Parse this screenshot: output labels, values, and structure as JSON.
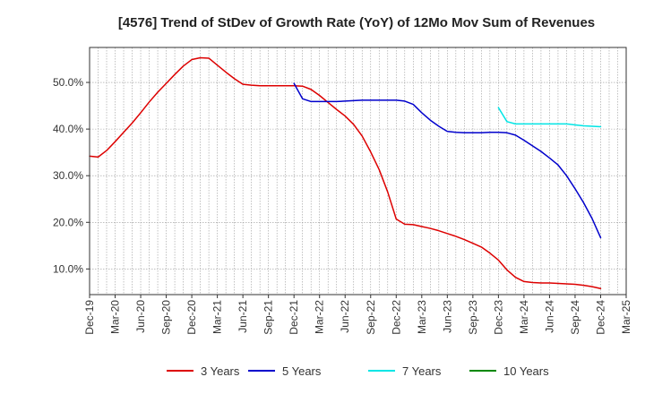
{
  "chart_data": {
    "type": "line",
    "title": "[4576]  Trend of StDev of Growth Rate (YoY) of 12Mo Mov Sum of Revenues",
    "xlabel": "",
    "ylabel": "",
    "x_ticks": [
      "Dec-19",
      "Mar-20",
      "Jun-20",
      "Sep-20",
      "Dec-20",
      "Mar-21",
      "Jun-21",
      "Sep-21",
      "Dec-21",
      "Mar-22",
      "Jun-22",
      "Sep-22",
      "Dec-22",
      "Mar-23",
      "Jun-23",
      "Sep-23",
      "Dec-23",
      "Mar-24",
      "Jun-24",
      "Sep-24",
      "Dec-24",
      "Mar-25"
    ],
    "y_ticks": [
      10,
      20,
      30,
      40,
      50
    ],
    "y_tick_labels": [
      "10.0%",
      "20.0%",
      "30.0%",
      "40.0%",
      "50.0%"
    ],
    "ylim": [
      4.5,
      57.5
    ],
    "x_range_months": [
      0,
      63
    ],
    "grid": true,
    "legend_position": "bottom",
    "series": [
      {
        "name": "3 Years",
        "color": "#dd0000",
        "x_months": [
          0,
          1,
          2,
          3,
          4,
          5,
          6,
          7,
          8,
          9,
          10,
          11,
          12,
          13,
          14,
          15,
          16,
          17,
          18,
          19,
          20,
          21,
          22,
          23,
          24,
          25,
          26,
          27,
          28,
          29,
          30,
          31,
          32,
          33,
          34,
          35,
          36,
          37,
          38,
          39,
          40,
          41,
          42,
          43,
          44,
          45,
          46,
          47,
          48,
          49,
          50,
          51,
          52,
          53,
          54,
          55,
          56,
          57,
          58,
          59,
          60
        ],
        "values": [
          34.2,
          34.0,
          35.4,
          37.3,
          39.3,
          41.3,
          43.5,
          45.8,
          47.9,
          49.8,
          51.7,
          53.5,
          54.9,
          55.3,
          55.2,
          53.7,
          52.2,
          50.8,
          49.6,
          49.4,
          49.3,
          49.3,
          49.3,
          49.3,
          49.3,
          49.2,
          48.5,
          47.2,
          45.7,
          44.2,
          42.8,
          41.0,
          38.5,
          35.1,
          31.3,
          26.5,
          20.7,
          19.6,
          19.5,
          19.1,
          18.7,
          18.2,
          17.6,
          17.0,
          16.3,
          15.5,
          14.7,
          13.4,
          11.9,
          9.8,
          8.2,
          7.3,
          7.1,
          7.0,
          7.0,
          6.9,
          6.8,
          6.7,
          6.5,
          6.2,
          5.8
        ]
      },
      {
        "name": "5 Years",
        "color": "#0000cc",
        "x_months": [
          24,
          25,
          26,
          27,
          28,
          29,
          30,
          31,
          32,
          33,
          34,
          35,
          36,
          37,
          38,
          39,
          40,
          41,
          42,
          43,
          44,
          45,
          46,
          47,
          48,
          49,
          50,
          51,
          52,
          53,
          54,
          55,
          56,
          57,
          58,
          59,
          60
        ],
        "values": [
          49.8,
          46.5,
          45.9,
          45.9,
          45.9,
          45.9,
          46.0,
          46.1,
          46.2,
          46.2,
          46.2,
          46.2,
          46.2,
          46.0,
          45.3,
          43.5,
          41.9,
          40.6,
          39.5,
          39.3,
          39.2,
          39.2,
          39.2,
          39.3,
          39.3,
          39.2,
          38.7,
          37.6,
          36.4,
          35.2,
          33.8,
          32.3,
          30.0,
          27.2,
          24.2,
          20.8,
          16.7
        ]
      },
      {
        "name": "7 Years",
        "color": "#00e5e5",
        "x_months": [
          48,
          49,
          50,
          51,
          52,
          53,
          54,
          55,
          56,
          57,
          58,
          59,
          60
        ],
        "values": [
          44.6,
          41.6,
          41.1,
          41.1,
          41.1,
          41.1,
          41.1,
          41.1,
          41.1,
          40.9,
          40.7,
          40.6,
          40.5
        ]
      },
      {
        "name": "10 Years",
        "color": "#008800",
        "x_months": [],
        "values": []
      }
    ]
  }
}
